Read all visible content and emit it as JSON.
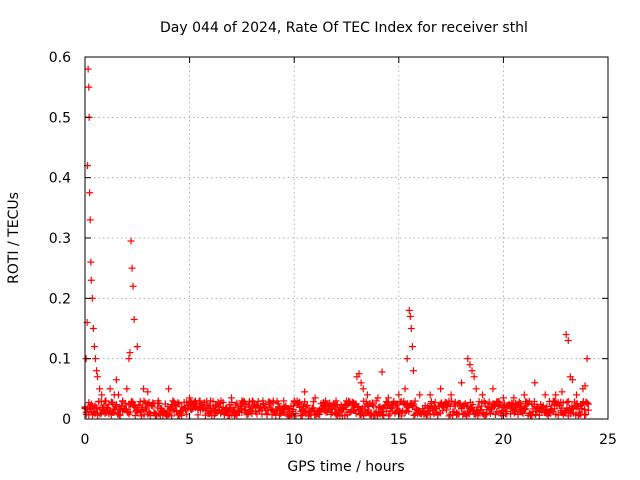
{
  "chart_data": {
    "type": "scatter",
    "title": "Day 044 of 2024, Rate Of TEC Index for receiver sthl",
    "xlabel": "GPS time / hours",
    "ylabel": "ROTI / TECUs",
    "xlim": [
      0,
      25
    ],
    "ylim": [
      0,
      0.6
    ],
    "xticks": [
      0,
      5,
      10,
      15,
      20,
      25
    ],
    "yticks": [
      0,
      0.1,
      0.2,
      0.3,
      0.4,
      0.5,
      0.6
    ],
    "xtick_labels": [
      "0",
      "5",
      "10",
      "15",
      "20",
      "25"
    ],
    "ytick_labels": [
      "0",
      "0.1",
      "0.2",
      "0.3",
      "0.4",
      "0.5",
      "0.6"
    ],
    "grid": true,
    "marker": "+",
    "color": "#ff0000",
    "baseline_band": [
      0.005,
      0.03
    ],
    "series": [
      {
        "x": [
          0.0,
          0.05,
          0.1,
          0.12,
          0.15,
          0.18,
          0.2,
          0.22,
          0.25,
          0.28,
          0.3,
          0.35,
          0.4,
          0.45,
          0.5,
          0.55,
          0.6,
          0.7,
          0.8,
          1.0,
          1.2,
          1.4,
          1.5,
          1.6,
          1.8,
          2.0,
          2.1,
          2.15,
          2.2,
          2.25,
          2.3,
          2.35,
          2.5,
          2.8,
          3.0,
          3.5,
          4.0,
          4.2,
          4.5,
          5.0,
          5.5,
          6.0,
          6.5,
          7.0,
          7.5,
          8.0,
          8.5,
          9.0,
          9.5,
          10.0,
          10.5,
          11.0,
          11.5,
          12.0,
          12.5,
          13.0,
          13.1,
          13.2,
          13.3,
          13.5,
          14.0,
          14.2,
          14.5,
          15.0,
          15.3,
          15.4,
          15.5,
          15.55,
          15.6,
          15.65,
          15.7,
          16.0,
          16.5,
          17.0,
          17.5,
          18.0,
          18.3,
          18.4,
          18.5,
          18.6,
          18.7,
          19.0,
          19.5,
          20.0,
          20.5,
          21.0,
          21.5,
          22.0,
          22.5,
          22.8,
          23.0,
          23.1,
          23.2,
          23.3,
          23.5,
          23.8,
          23.9,
          24.0
        ],
        "y": [
          0.02,
          0.1,
          0.16,
          0.42,
          0.58,
          0.55,
          0.5,
          0.375,
          0.33,
          0.26,
          0.23,
          0.2,
          0.15,
          0.12,
          0.1,
          0.08,
          0.07,
          0.05,
          0.04,
          0.03,
          0.05,
          0.04,
          0.065,
          0.04,
          0.03,
          0.05,
          0.1,
          0.11,
          0.295,
          0.25,
          0.22,
          0.165,
          0.12,
          0.05,
          0.045,
          0.03,
          0.05,
          0.03,
          0.025,
          0.035,
          0.03,
          0.03,
          0.03,
          0.035,
          0.03,
          0.03,
          0.03,
          0.03,
          0.03,
          0.03,
          0.045,
          0.035,
          0.03,
          0.03,
          0.03,
          0.07,
          0.075,
          0.06,
          0.05,
          0.04,
          0.035,
          0.078,
          0.035,
          0.04,
          0.05,
          0.1,
          0.18,
          0.17,
          0.15,
          0.12,
          0.08,
          0.04,
          0.04,
          0.05,
          0.04,
          0.06,
          0.1,
          0.09,
          0.08,
          0.07,
          0.05,
          0.04,
          0.05,
          0.035,
          0.035,
          0.04,
          0.06,
          0.04,
          0.04,
          0.045,
          0.14,
          0.13,
          0.07,
          0.065,
          0.04,
          0.05,
          0.055,
          0.1
        ]
      }
    ]
  }
}
